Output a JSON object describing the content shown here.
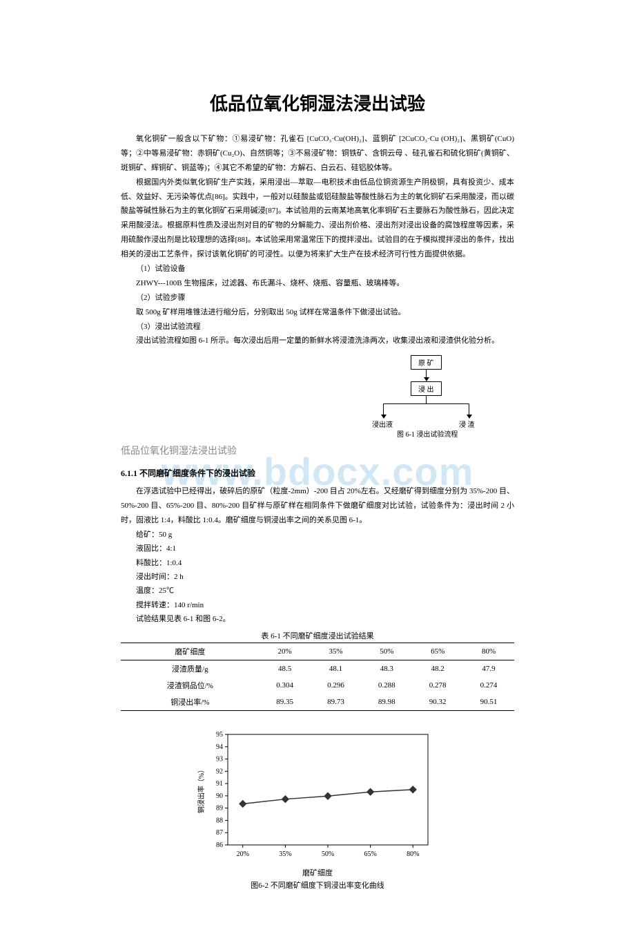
{
  "title": "低品位氧化铜湿法浸出试验",
  "para1": "氧化铜矿一般含以下矿物：①易浸矿物：孔雀石 [CuCO₃·Cu(OH)₂]、蓝铜矿 [2CuCO₃·Cu (OH)₂]、黑铜矿(CuO)等；②中等易浸矿物：赤铜矿(Cu₂O)、自然铜等；③不易浸矿物：铜铁矿、含铜云母 、硅孔雀石和硫化铜矿(黄铜矿、斑铜矿、辉铜矿、铜蓝等)；④其它不希望的矿物：方解石、白云石、硅铝胶体等。",
  "para2": "根据国内外类似氧化铜矿生产实践，采用浸出—萃取—电积技术由低品位铜资源生产阴极铜，具有投资少、成本低、效益好、无污染等优点[86]。实践中，一般对以硅酸盐或铝硅酸盐等酸性脉石为主的氧化铜矿石采用酸浸，而以碳酸盐等碱性脉石为主的氧化铜矿石采用碱浸[87]。本试验用的云南某地高氧化率铜矿石主要脉石为酸性脉石，因此决定采用酸浸法。根据原料性质及浸出剂对目的矿物的分解能力、浸出剂价格、浸出剂对浸出设备的腐蚀程度等因素，采用硫酸作浸出剂是比较理想的选择[88]。本试验采用常温常压下的搅拌浸出。试验目的在于模拟搅拌浸出的条件，找出相关的浸出工艺条件，探讨该氧化铜矿的可浸性。以便为将来扩大生产在技术经济可行性方面提供依据。",
  "sub1_label": "（1）试验设备",
  "sub1_text": "ZHWY---100B 生物摇床，过滤器、布氏漏斗、烧杯、烧瓶、容量瓶、玻璃棒等。",
  "sub2_label": "（2）试验步骤",
  "sub2_text": "取 500g 矿样用堆锥法进行缩分后，分别取出 50g 试样在常温条件下做浸出试验。",
  "sub3_label": "（3）浸出试验流程",
  "sub3_text": "浸出试验流程如图 6-1 所示。每次浸出后用一定量的新鲜水将浸渣洗涤两次，收集浸出液和浸渣供化验分析。",
  "flowchart": {
    "node_ore": "原 矿",
    "node_leach": "浸 出",
    "node_liquid": "浸出液",
    "node_residue": "浸 渣",
    "caption": "图 6-1 浸出试验流程"
  },
  "subtitle_gray": "低品位氧化铜湿法浸出试验",
  "section_heading": "6.1.1 不同磨矿细度条件下的浸出试验",
  "para3": "在浮选试验中已经得出，破碎后的原矿（粒度-2mm）-200 目占 20%左右。又经磨矿得到细度分别为 35%-200 目、50%-200 目、65%-200 目、80%-200 目矿样与原矿样在相同条件下做磨矿细度对比试验，试验条件为：浸出时间 2 小时，固液比 1:4，料酸比 1:0.4。磨矿细度与铜浸出率之间的关系见图 6-1。",
  "params": [
    "给矿：50 g",
    "液固比：4:1",
    "料酸比：1:0.4",
    "浸出时间：2 h",
    "温度：25℃",
    "搅拌转速：140 r/min",
    "试验结果见表 6-1 和图 6-2。"
  ],
  "table": {
    "caption": "表 6-1 不同磨矿细度浸出试验结果",
    "headers": [
      "磨矿细度",
      "20%",
      "35%",
      "50%",
      "65%",
      "80%"
    ],
    "rows": [
      [
        "浸渣质量/g",
        "48.5",
        "48.1",
        "48.3",
        "48.2",
        "47.9"
      ],
      [
        "浸渣铜品位/%",
        "0.304",
        "0.296",
        "0.288",
        "0.278",
        "0.274"
      ],
      [
        "铜浸出率/%",
        "89.35",
        "89.73",
        "89.98",
        "90.32",
        "90.51"
      ]
    ]
  },
  "chart": {
    "type": "line",
    "xlabel": "磨矿细度",
    "ylabel": "铜浸出率（%）",
    "caption": "图6-2 不同磨矿细度下铜浸出率变化曲线",
    "x_categories": [
      "20%",
      "35%",
      "50%",
      "65%",
      "80%"
    ],
    "y_values": [
      89.35,
      89.73,
      89.98,
      90.32,
      90.51
    ],
    "ylim": [
      86,
      95
    ],
    "ytick_step": 1,
    "line_color": "#333333",
    "marker": "diamond",
    "marker_size": 5,
    "background": "#ffffff",
    "grid_color": "#cccccc",
    "axis_color": "#000000",
    "font_size": 10
  },
  "watermark": "www.bdocx.com"
}
